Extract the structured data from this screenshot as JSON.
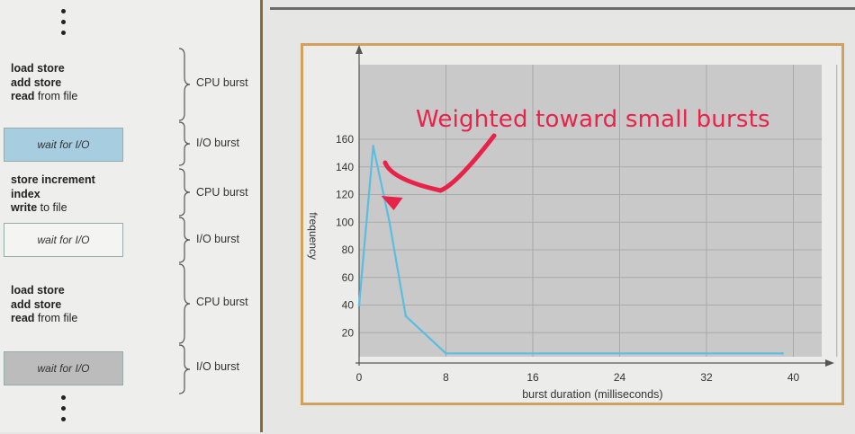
{
  "left_panel": {
    "blocks": [
      {
        "lines": [
          {
            "bold": "load store",
            "rest": ""
          },
          {
            "bold": "add store",
            "rest": ""
          },
          {
            "bold": "read",
            "rest": " from file"
          }
        ],
        "burst": "CPU burst"
      },
      {
        "wait": "wait for I/O",
        "burst": "I/O burst"
      },
      {
        "lines": [
          {
            "bold": "store increment",
            "rest": ""
          },
          {
            "bold": "index",
            "rest": ""
          },
          {
            "bold": "write",
            "rest": " to file"
          }
        ],
        "burst": "CPU burst"
      },
      {
        "wait": "wait for I/O",
        "burst": "I/O burst"
      },
      {
        "lines": [
          {
            "bold": "load store",
            "rest": ""
          },
          {
            "bold": "add store",
            "rest": ""
          },
          {
            "bold": "read",
            "rest": " from file"
          }
        ],
        "burst": "CPU burst"
      },
      {
        "wait": "wait for I/O",
        "burst": "I/O burst"
      }
    ]
  },
  "chart_data": {
    "type": "line",
    "title": "",
    "xlabel": "burst duration (milliseconds)",
    "ylabel": "frequency",
    "xlim": [
      0,
      42
    ],
    "ylim": [
      0,
      175
    ],
    "xticks": [
      0,
      8,
      16,
      24,
      32,
      40
    ],
    "yticks": [
      20,
      40,
      60,
      80,
      100,
      120,
      140,
      160
    ],
    "grid": true,
    "series": [
      {
        "x": [
          0,
          1.3,
          2.8,
          4.3,
          8,
          39
        ],
        "y": [
          40,
          155,
          100,
          32,
          5,
          5
        ],
        "color": "#5bbde0"
      }
    ],
    "annotation": {
      "text": "Weighted toward small bursts",
      "color": "#e8234a",
      "points_to": {
        "x": 2.2,
        "y": 119
      }
    }
  }
}
